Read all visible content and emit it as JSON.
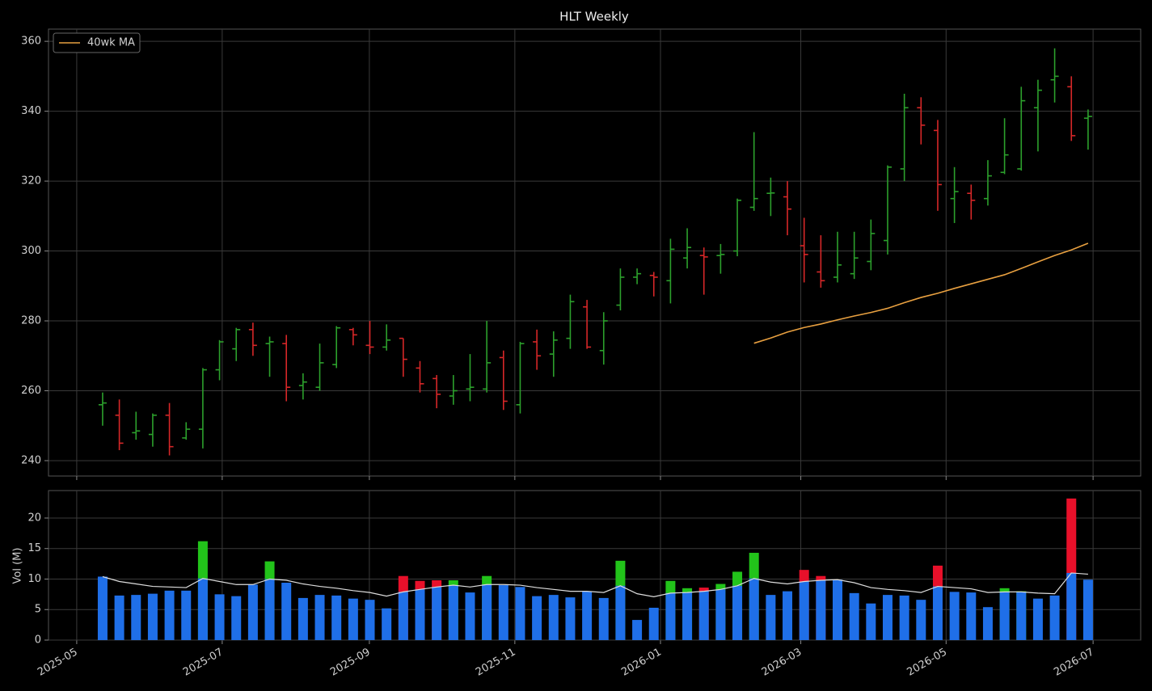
{
  "chart_data": [
    {
      "type": "ohlc",
      "title": "HLT Weekly",
      "open": [
        256,
        253,
        248,
        247.5,
        253,
        246.5,
        249,
        266,
        272,
        277.5,
        273.5,
        273.5,
        261.5,
        261,
        267.5,
        277.5,
        273,
        272.5,
        275,
        266.5,
        263.5,
        258.5,
        260.5,
        260.5,
        269.5,
        256,
        274,
        270.5,
        275,
        284,
        271.5,
        284.5,
        292.5,
        293,
        291.5,
        298,
        298.7,
        298.7,
        300,
        312.5,
        316.5,
        315.5,
        301.5,
        294,
        292.5,
        293.5,
        297,
        303,
        323.5,
        341,
        334.5,
        315,
        316.5,
        315,
        322.5,
        323.5,
        341,
        349,
        347,
        338
      ],
      "high": [
        259.5,
        257.5,
        254,
        253.5,
        256.5,
        251,
        266.5,
        274.5,
        278,
        279.5,
        275.5,
        276,
        265,
        273.5,
        278.5,
        278,
        280,
        279,
        275,
        268.5,
        264.5,
        264.5,
        270.5,
        280,
        271.5,
        274,
        277.5,
        277,
        287.5,
        286,
        282.5,
        295,
        295,
        294,
        303.5,
        306.5,
        301,
        302,
        315,
        334,
        321,
        320,
        309.5,
        304.5,
        305.5,
        305.5,
        309,
        324.5,
        345,
        344,
        337.5,
        324,
        319,
        326,
        338,
        347,
        349,
        358,
        350,
        340.5
      ],
      "low": [
        250,
        243,
        246,
        244,
        241.5,
        246,
        243.5,
        263,
        268.5,
        270,
        264,
        257,
        257.5,
        260,
        266.5,
        273,
        270.5,
        271.5,
        264,
        259.5,
        255,
        256,
        257,
        259.5,
        254.5,
        253.5,
        266,
        264,
        272,
        272,
        267.5,
        283,
        290.5,
        287,
        285,
        295,
        287.5,
        293.5,
        298.5,
        311.5,
        310,
        304.5,
        291,
        289.5,
        291,
        292,
        294.5,
        299,
        320,
        330.5,
        311.5,
        308,
        309,
        313,
        322,
        323,
        328.5,
        342.5,
        331.5,
        329
      ],
      "close": [
        256.5,
        245,
        248.5,
        253,
        244,
        249,
        266,
        274,
        277.5,
        273,
        274,
        261,
        262.5,
        268,
        278,
        276,
        272.5,
        274.5,
        269,
        262,
        259,
        260,
        261,
        268,
        257,
        273.5,
        270,
        274.5,
        285.5,
        272.5,
        280,
        292.5,
        293.5,
        292.5,
        300.5,
        301,
        298.3,
        299,
        314.5,
        315,
        316.6,
        312,
        299,
        291.5,
        296,
        298,
        305,
        324,
        341,
        336,
        319,
        317,
        314.5,
        321.5,
        327.5,
        343,
        346,
        350,
        333,
        338.5
      ],
      "up_color": "#2ca02c",
      "down_color": "#d62728",
      "series": [
        {
          "name": "40wk MA",
          "color": "#e8a040",
          "values": [
            null,
            null,
            null,
            null,
            null,
            null,
            null,
            null,
            null,
            null,
            null,
            null,
            null,
            null,
            null,
            null,
            null,
            null,
            null,
            null,
            null,
            null,
            null,
            null,
            null,
            null,
            null,
            null,
            null,
            null,
            null,
            null,
            null,
            null,
            null,
            null,
            null,
            null,
            null,
            273.6,
            275.1,
            276.8,
            278.1,
            279.1,
            280.3,
            281.4,
            282.4,
            283.6,
            285.2,
            286.7,
            287.9,
            289.3,
            290.6,
            291.9,
            293.2,
            295,
            296.9,
            298.7,
            300.3,
            302.2
          ]
        }
      ],
      "ylim": [
        235.6,
        363.5
      ],
      "yticks": [
        240,
        260,
        280,
        300,
        320,
        340,
        360
      ],
      "grid": true,
      "legend": "upper left"
    },
    {
      "type": "volume",
      "ylabel": "Vol (M)",
      "values": [
        10.4,
        7.3,
        7.4,
        7.6,
        8.1,
        8.1,
        16.2,
        7.5,
        7.2,
        9.1,
        12.9,
        9.4,
        6.9,
        7.4,
        7.3,
        6.8,
        6.6,
        5.2,
        10.5,
        9.7,
        9.8,
        9.8,
        7.8,
        10.5,
        9,
        8.7,
        7.2,
        7.4,
        7,
        8,
        6.9,
        13,
        3.3,
        5.3,
        9.7,
        8.5,
        8.6,
        9.2,
        11.2,
        14.3,
        7.4,
        8,
        11.5,
        10.5,
        9.9,
        7.7,
        6,
        7.4,
        7.3,
        6.6,
        12.2,
        7.9,
        7.8,
        5.4,
        8.5,
        8,
        6.8,
        7.3,
        23.2,
        9.9
      ],
      "ma_values": [
        10.4,
        9.6,
        9.2,
        8.8,
        8.7,
        8.6,
        10.1,
        9.6,
        9.1,
        9.1,
        10,
        9.8,
        9.2,
        8.8,
        8.5,
        8.1,
        7.8,
        7.2,
        7.9,
        8.3,
        8.7,
        9,
        8.7,
        9.1,
        9.1,
        9,
        8.6,
        8.3,
        8,
        8,
        7.8,
        8.9,
        7.6,
        7.1,
        7.7,
        7.8,
        8,
        8.3,
        8.9,
        10.1,
        9.5,
        9.2,
        9.6,
        9.8,
        9.9,
        9.4,
        8.6,
        8.3,
        8.1,
        7.8,
        8.8,
        8.6,
        8.4,
        7.8,
        7.9,
        7.9,
        7.7,
        7.6,
        11,
        10.8
      ],
      "base_color": "#1f6fe8",
      "up_color": "#22c31a",
      "down_color": "#e8102a",
      "ma_color": "#dddddd",
      "ylim": [
        0,
        24.5
      ],
      "yticks": [
        0,
        5,
        10,
        15,
        20
      ],
      "grid": true,
      "xlim": [
        -3.24,
        62.15
      ],
      "xticks": [
        {
          "value": -1.55,
          "label": "2025-05"
        },
        {
          "value": 7.16,
          "label": "2025-07"
        },
        {
          "value": 15.97,
          "label": "2025-09"
        },
        {
          "value": 24.68,
          "label": "2025-11"
        },
        {
          "value": 33.4,
          "label": "2026-01"
        },
        {
          "value": 41.8,
          "label": "2026-03"
        },
        {
          "value": 50.5,
          "label": "2026-05"
        },
        {
          "value": 59.3,
          "label": "2026-07"
        }
      ]
    }
  ]
}
